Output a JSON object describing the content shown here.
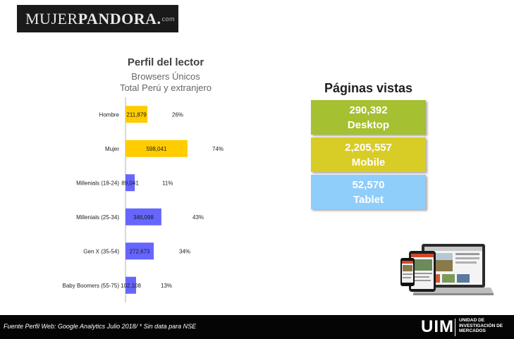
{
  "logo": {
    "part1": "MUJER",
    "part2": "PANDORA",
    "dot": ".",
    "suffix": "com"
  },
  "colors": {
    "gender_bar": "#FFCC00",
    "age_bar": "#6666FF",
    "desktop": "#A5C031",
    "mobile": "#D8CC26",
    "tablet": "#8FCDFA"
  },
  "chart_data": {
    "type": "bar",
    "orientation": "horizontal",
    "title": "Perfil del lector",
    "subtitle": [
      "Browsers Únicos",
      "Total Perú y extranjero"
    ],
    "categories": [
      "Hombre",
      "Mujer",
      "Millenials (18-24)",
      "Millenials (25-34)",
      "Gen X (35-54)",
      "Baby Boomers (55-75)"
    ],
    "values": [
      211879,
      598041,
      89041,
      346098,
      272673,
      102108
    ],
    "value_labels": [
      "211,879",
      "598,041",
      "89,041",
      "346,098",
      "272,673",
      "102,108"
    ],
    "percent_labels": [
      "26%",
      "74%",
      "11%",
      "43%",
      "34%",
      "13%"
    ],
    "groups": [
      "gender",
      "gender",
      "age",
      "age",
      "age",
      "age"
    ],
    "xlim": [
      0,
      1000000
    ],
    "grid": false
  },
  "pageviews": {
    "title": "Páginas vistas",
    "items": [
      {
        "value": "290,392",
        "label": "Desktop"
      },
      {
        "value": "2,205,557",
        "label": "Mobile"
      },
      {
        "value": "52,570",
        "label": "Tablet"
      }
    ]
  },
  "footer": {
    "note": "Fuente Perfil Web: Google Analytics Julio 2018/  * Sin data para NSE",
    "brand": "UIM",
    "brand_full": [
      "UNIDAD DE",
      "INVESTIGACIÓN DE",
      "MERCADOS"
    ]
  },
  "icons": {
    "devices": "devices-illustration-icon"
  }
}
